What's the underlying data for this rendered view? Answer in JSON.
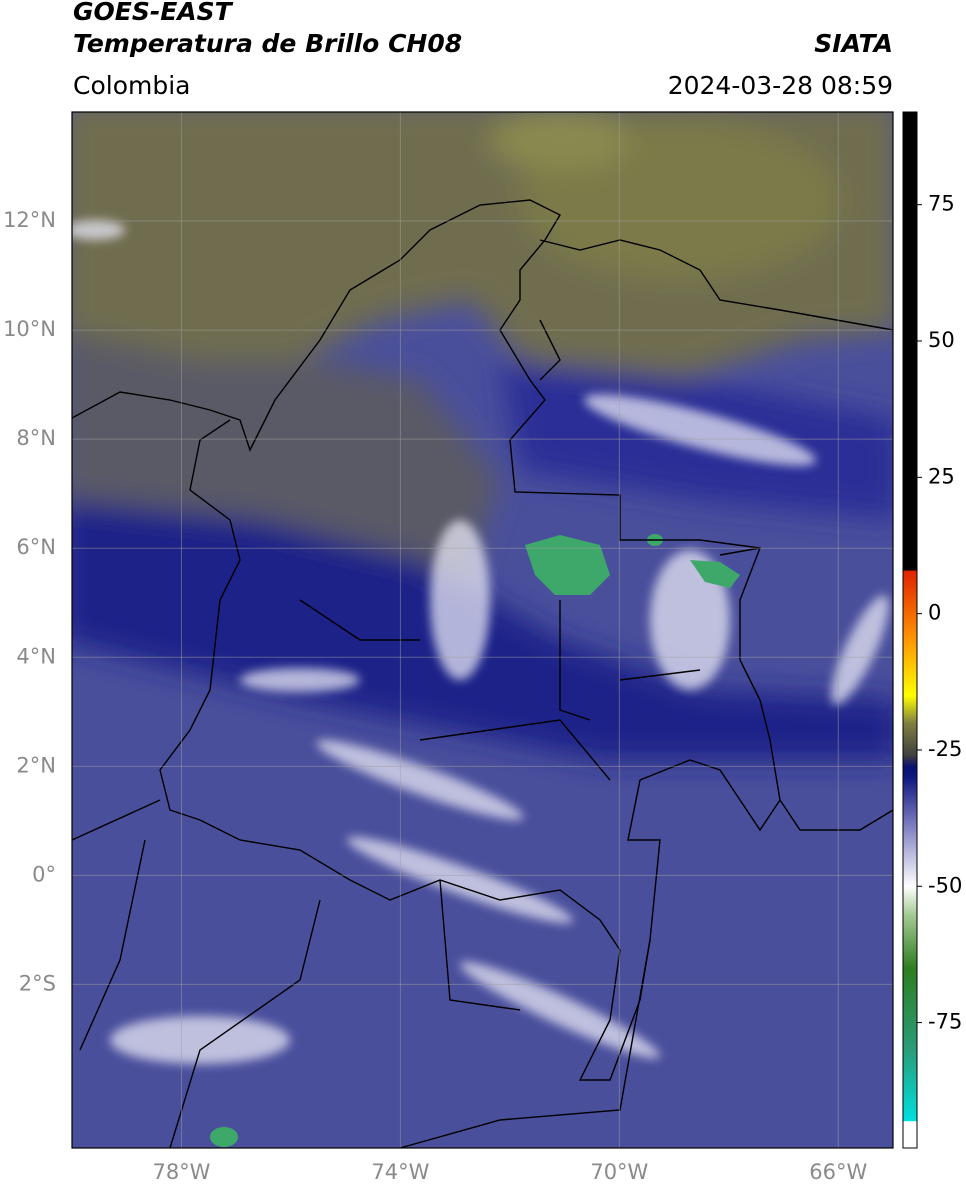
{
  "title": "GOES-EAST",
  "subtitle": "Temperatura de Brillo CH08",
  "region": "Colombia",
  "source": "SIATA",
  "timestamp": "2024-03-28 08:59",
  "map": {
    "xlim": [
      -80,
      -65
    ],
    "ylim": [
      -5,
      14
    ],
    "grid": true,
    "xticks": [
      {
        "value": -78,
        "label": "78°W"
      },
      {
        "value": -74,
        "label": "74°W"
      },
      {
        "value": -70,
        "label": "70°W"
      },
      {
        "value": -66,
        "label": "66°W"
      }
    ],
    "yticks": [
      {
        "value": 12,
        "label": "12°N"
      },
      {
        "value": 10,
        "label": "10°N"
      },
      {
        "value": 8,
        "label": "8°N"
      },
      {
        "value": 6,
        "label": "6°N"
      },
      {
        "value": 4,
        "label": "4°N"
      },
      {
        "value": 2,
        "label": "2°N"
      },
      {
        "value": 0,
        "label": "0°"
      },
      {
        "value": -2,
        "label": "2°S"
      }
    ]
  },
  "colorbar": {
    "ylim": [
      -98,
      92
    ],
    "yticks": [
      75,
      50,
      25,
      0,
      -25,
      -50,
      -75
    ],
    "stops": [
      {
        "value": -98,
        "color": "#ffffff"
      },
      {
        "value": -93,
        "color": "#ffffff"
      },
      {
        "value": -93,
        "color": "#00e0e0"
      },
      {
        "value": -80,
        "color": "#2a9d7a"
      },
      {
        "value": -65,
        "color": "#2e7d20"
      },
      {
        "value": -55,
        "color": "#a8cc98"
      },
      {
        "value": -50,
        "color": "#ffffff"
      },
      {
        "value": -40,
        "color": "#8c8cc8"
      },
      {
        "value": -30,
        "color": "#101880"
      },
      {
        "value": -28,
        "color": "#0a1070"
      },
      {
        "value": -26,
        "color": "#404040"
      },
      {
        "value": -20,
        "color": "#808040"
      },
      {
        "value": -15,
        "color": "#ffff00"
      },
      {
        "value": -5,
        "color": "#ff9900"
      },
      {
        "value": 8,
        "color": "#e02000"
      },
      {
        "value": 8,
        "color": "#000000"
      },
      {
        "value": 92,
        "color": "#000000"
      }
    ]
  }
}
